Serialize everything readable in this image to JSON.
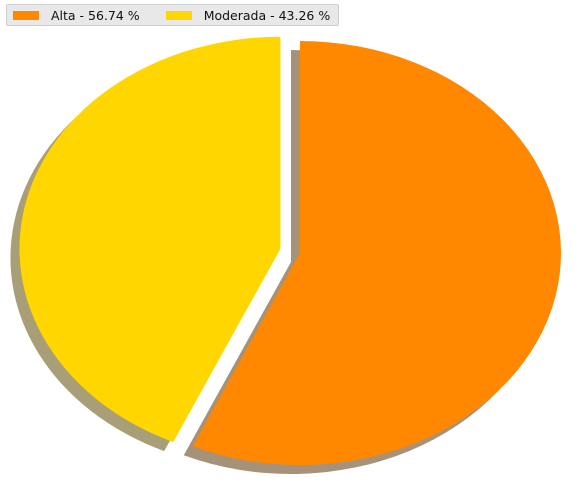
{
  "chart_data": {
    "type": "pie",
    "title": "",
    "slices": [
      {
        "label": "Alta",
        "value": 56.74,
        "color": "#ff8800",
        "shadow": "#a69279",
        "exploded": false
      },
      {
        "label": "Moderada",
        "value": 43.26,
        "color": "#ffd600",
        "shadow": "#a89f78",
        "exploded": true
      }
    ],
    "start": "top",
    "direction": "clockwise",
    "shadow": true,
    "legend": {
      "position": "top-left",
      "entries": [
        "Alta - 56.74 %",
        "Moderada - 43.26 %"
      ]
    }
  }
}
